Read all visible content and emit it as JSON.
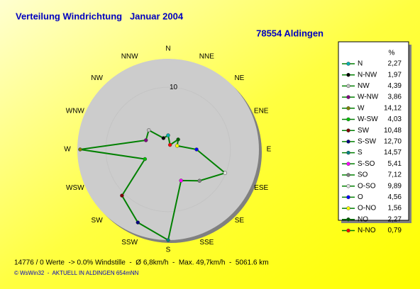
{
  "chart_data": {
    "type": "radar",
    "title": "Verteilung Windrichtung   Januar 2004",
    "subtitle": "78554 Aldingen",
    "directions": [
      "N",
      "NNE",
      "NE",
      "ENE",
      "E",
      "ESE",
      "SE",
      "SSE",
      "S",
      "SSW",
      "SW",
      "WSW",
      "W",
      "WNW",
      "NW",
      "NNW"
    ],
    "rlim": [
      0,
      14.57
    ],
    "rticks": [
      10
    ],
    "line_color": "#008000",
    "legend_title": "%",
    "categories": [
      "N",
      "N-NW",
      "NW",
      "W-NW",
      "W",
      "W-SW",
      "SW",
      "S-SW",
      "S",
      "S-SO",
      "SO",
      "O-SO",
      "O",
      "O-NO",
      "NO",
      "N-NO"
    ],
    "values": [
      2.27,
      1.97,
      4.39,
      3.86,
      14.12,
      4.03,
      10.48,
      12.7,
      14.57,
      5.41,
      7.12,
      9.89,
      4.56,
      1.56,
      2.27,
      0.79
    ],
    "value_labels": [
      "2,27",
      "1,97",
      "4,39",
      "3,86",
      "14,12",
      "4,03",
      "10,48",
      "12,70",
      "14,57",
      "5,41",
      "7,12",
      "9,89",
      "4,56",
      "1,56",
      "2,27",
      "0,79"
    ],
    "colors": [
      "#00b0b0",
      "#000000",
      "#c0c0c0",
      "#800080",
      "#808000",
      "#00c000",
      "#800000",
      "#000080",
      "#008080",
      "#ff00ff",
      "#808080",
      "#e0e0e0",
      "#0000ff",
      "#ffff00",
      "#006000",
      "#ff0000"
    ],
    "footer": [
      "14776 / 0 Werte  -> 0.0% Windstille  -  Ø 6,8km/h  -  Max. 49,7km/h  -  5061.6 km",
      "© WsWin32  -  AKTUELL IN ALDINGEN 654mNN"
    ]
  }
}
